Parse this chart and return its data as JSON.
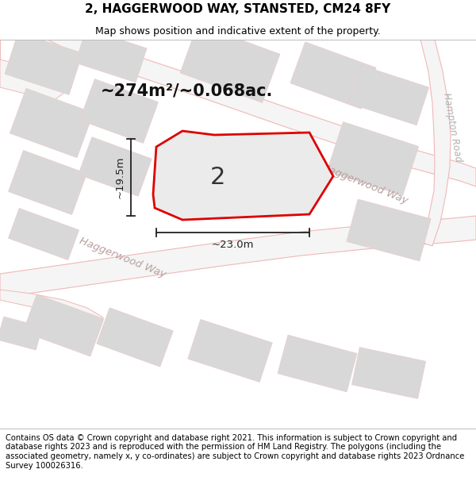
{
  "title_line1": "2, HAGGERWOOD WAY, STANSTED, CM24 8FY",
  "title_line2": "Map shows position and indicative extent of the property.",
  "footer_text": "Contains OS data © Crown copyright and database right 2021. This information is subject to Crown copyright and database rights 2023 and is reproduced with the permission of HM Land Registry. The polygons (including the associated geometry, namely x, y co-ordinates) are subject to Crown copyright and database rights 2023 Ordnance Survey 100026316.",
  "area_text": "~274m²/~0.068ac.",
  "width_label": "~23.0m",
  "height_label": "~19.5m",
  "plot_number": "2",
  "map_bg": "#f0eeec",
  "plot_fill": "#e6e6e6",
  "plot_outline": "#dd0000",
  "road_fill": "#f5f5f5",
  "road_edge": "#f0b8b8",
  "building_fill": "#d8d8d8",
  "building_edge": "#e8d0d0",
  "street_text_color": "#b8a0a0",
  "hampton_text_color": "#b0b0b0",
  "dim_line_color": "#222222",
  "title_fontsize": 11,
  "subtitle_fontsize": 9,
  "area_fontsize": 15,
  "label_fontsize": 9.5,
  "footer_fontsize": 7.2,
  "plot_label_fontsize": 22
}
